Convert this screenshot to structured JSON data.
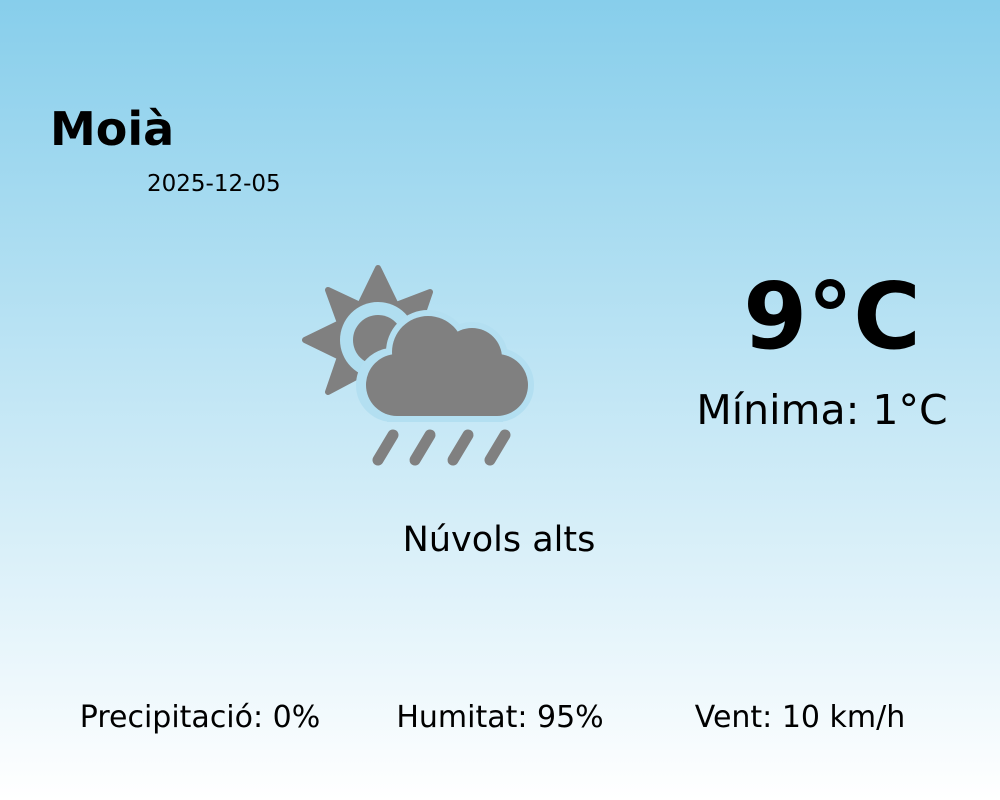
{
  "location": {
    "city": "Moià",
    "date": "2025-12-05"
  },
  "current": {
    "temperature": "9°C",
    "minimum": "Mínima: 1°C",
    "condition": "Núvols alts",
    "icon": "partly-cloudy-rain-icon",
    "icon_color": "#808080"
  },
  "stats": {
    "precipitation": "Precipitació: 0%",
    "humidity": "Humitat: 95%",
    "wind": "Vent: 10 km/h"
  },
  "colors": {
    "background_top": "#87ceeb",
    "background_bottom": "#ffffff"
  }
}
